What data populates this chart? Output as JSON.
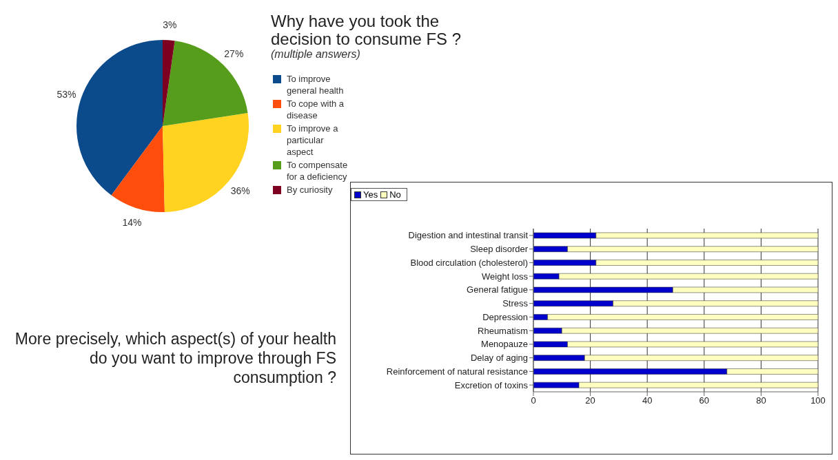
{
  "chart_data": [
    {
      "type": "pie",
      "title": "Why have you took the decision to consume FS ?",
      "subtitle": "(multiple answers)",
      "categories": [
        "To improve general health",
        "To cope with a disease",
        "To improve a particular aspect",
        "To compensate for a deficiency",
        "By curiosity"
      ],
      "values": [
        53,
        14,
        36,
        27,
        3
      ],
      "colors": [
        "#0b4a8b",
        "#ff4e0c",
        "#ffd320",
        "#579d1c",
        "#7e0021"
      ],
      "value_labels": [
        "53%",
        "14%",
        "36%",
        "27%",
        "3%"
      ],
      "legend": "right"
    },
    {
      "type": "bar",
      "orientation": "horizontal",
      "stacked": true,
      "title": "More precisely, which aspect(s) of your health do you want to improve through FS consumption ?",
      "categories": [
        "Digestion and intestinal transit",
        "Sleep disorder",
        "Blood circulation (cholesterol)",
        "Weight loss",
        "General fatigue",
        "Stress",
        "Depression",
        "Rheumatism",
        "Menopauze",
        "Delay of aging",
        "Reinforcement of natural resistance",
        "Excretion of toxins"
      ],
      "series": [
        {
          "name": "Yes",
          "color": "#0000cc",
          "values": [
            22,
            12,
            22,
            9,
            49,
            28,
            5,
            10,
            12,
            18,
            68,
            16
          ]
        },
        {
          "name": "No",
          "color": "#ffffc0",
          "values": [
            78,
            88,
            78,
            91,
            51,
            72,
            95,
            90,
            88,
            82,
            32,
            84
          ]
        }
      ],
      "xlim": [
        0,
        100
      ],
      "xticks": [
        0,
        20,
        40,
        60,
        80,
        100
      ],
      "grid": "x",
      "legend": "top"
    }
  ]
}
